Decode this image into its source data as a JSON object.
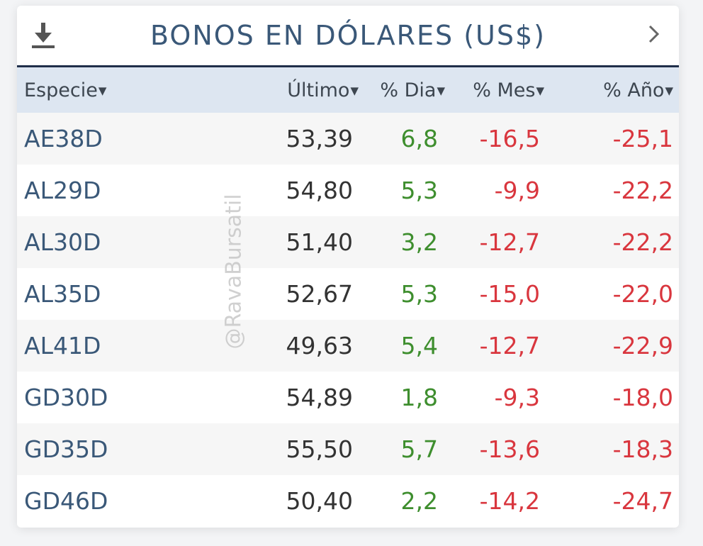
{
  "widget": {
    "title": "BONOS EN DÓLARES (US$)",
    "download_icon": "download-icon",
    "next_icon": "chevron-right-icon"
  },
  "watermark": "@RavaBursatil",
  "table": {
    "columns": [
      {
        "label": "Especie",
        "sort_icon": "caret-down-icon"
      },
      {
        "label": "Último",
        "sort_icon": "caret-down-icon"
      },
      {
        "label": "% Dia",
        "sort_icon": "caret-down-icon"
      },
      {
        "label": "% Mes",
        "sort_icon": "caret-down-icon"
      },
      {
        "label": "% Año",
        "sort_icon": "caret-down-icon"
      }
    ],
    "rows": [
      {
        "especie": "AE38D",
        "ultimo": "53,39",
        "dia": "6,8",
        "mes": "-16,5",
        "anio": "-25,1"
      },
      {
        "especie": "AL29D",
        "ultimo": "54,80",
        "dia": "5,3",
        "mes": "-9,9",
        "anio": "-22,2"
      },
      {
        "especie": "AL30D",
        "ultimo": "51,40",
        "dia": "3,2",
        "mes": "-12,7",
        "anio": "-22,2"
      },
      {
        "especie": "AL35D",
        "ultimo": "52,67",
        "dia": "5,3",
        "mes": "-15,0",
        "anio": "-22,0"
      },
      {
        "especie": "AL41D",
        "ultimo": "49,63",
        "dia": "5,4",
        "mes": "-12,7",
        "anio": "-22,9"
      },
      {
        "especie": "GD30D",
        "ultimo": "54,89",
        "dia": "1,8",
        "mes": "-9,3",
        "anio": "-18,0"
      },
      {
        "especie": "GD35D",
        "ultimo": "55,50",
        "dia": "5,7",
        "mes": "-13,6",
        "anio": "-18,3"
      },
      {
        "especie": "GD46D",
        "ultimo": "50,40",
        "dia": "2,2",
        "mes": "-14,2",
        "anio": "-24,7"
      }
    ]
  },
  "colors": {
    "title": "#3a5878",
    "header_bg": "#dde6f1",
    "positive": "#3e8e2e",
    "negative": "#d9363e",
    "rule": "#1f2f4a"
  }
}
